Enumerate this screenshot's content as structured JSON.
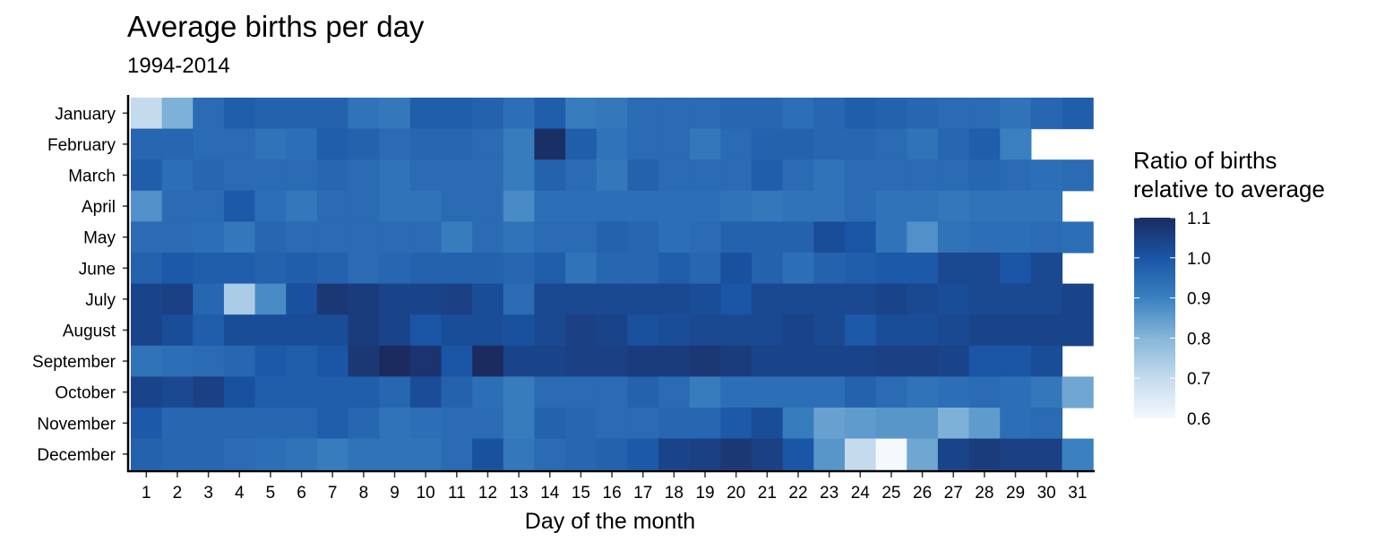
{
  "chart_data": {
    "type": "heatmap",
    "title": "Average births per day",
    "subtitle": "1994-2014",
    "xlabel": "Day of the month",
    "ylabel": "",
    "x": [
      1,
      2,
      3,
      4,
      5,
      6,
      7,
      8,
      9,
      10,
      11,
      12,
      13,
      14,
      15,
      16,
      17,
      18,
      19,
      20,
      21,
      22,
      23,
      24,
      25,
      26,
      27,
      28,
      29,
      30,
      31
    ],
    "y": [
      "January",
      "February",
      "March",
      "April",
      "May",
      "June",
      "July",
      "August",
      "September",
      "October",
      "November",
      "December"
    ],
    "values": [
      [
        0.7,
        0.81,
        0.95,
        0.98,
        0.97,
        0.97,
        0.97,
        0.93,
        0.92,
        0.98,
        0.98,
        0.97,
        0.94,
        0.98,
        0.91,
        0.92,
        0.95,
        0.95,
        0.95,
        0.96,
        0.96,
        0.94,
        0.96,
        0.98,
        0.97,
        0.96,
        0.95,
        0.95,
        0.93,
        0.96,
        0.98
      ],
      [
        0.96,
        0.96,
        0.95,
        0.95,
        0.93,
        0.94,
        0.98,
        0.97,
        0.95,
        0.96,
        0.96,
        0.95,
        0.91,
        1.09,
        0.98,
        0.93,
        0.95,
        0.95,
        0.92,
        0.95,
        0.97,
        0.97,
        0.96,
        0.96,
        0.95,
        0.93,
        0.96,
        0.98,
        0.9,
        null,
        null
      ],
      [
        0.98,
        0.94,
        0.96,
        0.95,
        0.95,
        0.95,
        0.96,
        0.95,
        0.93,
        0.95,
        0.95,
        0.95,
        0.91,
        0.97,
        0.95,
        0.92,
        0.97,
        0.95,
        0.95,
        0.95,
        0.98,
        0.95,
        0.93,
        0.95,
        0.95,
        0.95,
        0.95,
        0.96,
        0.95,
        0.94,
        0.95
      ],
      [
        0.87,
        0.95,
        0.95,
        0.99,
        0.94,
        0.92,
        0.95,
        0.95,
        0.93,
        0.93,
        0.95,
        0.95,
        0.88,
        0.94,
        0.94,
        0.94,
        0.94,
        0.94,
        0.94,
        0.93,
        0.92,
        0.93,
        0.93,
        0.95,
        0.93,
        0.93,
        0.92,
        0.93,
        0.93,
        0.93,
        null
      ],
      [
        0.95,
        0.95,
        0.94,
        0.92,
        0.96,
        0.95,
        0.95,
        0.95,
        0.95,
        0.95,
        0.91,
        0.95,
        0.93,
        0.95,
        0.95,
        0.97,
        0.96,
        0.94,
        0.95,
        0.97,
        0.97,
        0.97,
        1.02,
        1.0,
        0.93,
        0.87,
        0.93,
        0.94,
        0.94,
        0.95,
        0.94
      ],
      [
        0.97,
        0.99,
        0.98,
        0.98,
        0.97,
        0.98,
        0.97,
        0.95,
        0.96,
        0.97,
        0.97,
        0.97,
        0.96,
        0.98,
        0.93,
        0.96,
        0.96,
        0.98,
        0.96,
        1.01,
        0.97,
        0.94,
        0.97,
        0.98,
        0.99,
        0.99,
        1.03,
        1.03,
        1.0,
        1.03,
        null
      ],
      [
        1.04,
        1.05,
        0.96,
        0.74,
        0.88,
        1.01,
        1.07,
        1.06,
        1.04,
        1.04,
        1.05,
        1.02,
        0.95,
        1.03,
        1.03,
        1.03,
        1.03,
        1.03,
        1.02,
        1.0,
        1.03,
        1.03,
        1.03,
        1.03,
        1.04,
        1.03,
        1.02,
        1.03,
        1.03,
        1.03,
        1.04
      ],
      [
        1.04,
        1.02,
        0.98,
        1.02,
        1.02,
        1.02,
        1.02,
        1.06,
        1.04,
        1.0,
        1.02,
        1.02,
        1.01,
        1.03,
        1.05,
        1.04,
        1.01,
        1.02,
        1.03,
        1.03,
        1.03,
        1.04,
        1.03,
        0.99,
        1.02,
        1.02,
        1.03,
        1.04,
        1.04,
        1.04,
        1.04
      ],
      [
        0.93,
        0.94,
        0.95,
        0.96,
        0.99,
        0.98,
        1.0,
        1.07,
        1.1,
        1.08,
        1.0,
        1.1,
        1.04,
        1.04,
        1.05,
        1.05,
        1.06,
        1.06,
        1.07,
        1.06,
        1.04,
        1.04,
        1.04,
        1.04,
        1.05,
        1.05,
        1.04,
        1.0,
        1.0,
        1.02,
        null
      ],
      [
        1.04,
        1.03,
        1.05,
        1.01,
        0.98,
        0.98,
        0.98,
        0.98,
        0.96,
        1.02,
        0.97,
        0.94,
        0.91,
        0.95,
        0.95,
        0.95,
        0.97,
        0.95,
        0.91,
        0.94,
        0.94,
        0.94,
        0.94,
        0.97,
        0.95,
        0.93,
        0.94,
        0.95,
        0.94,
        0.92,
        0.83
      ],
      [
        0.99,
        0.96,
        0.96,
        0.96,
        0.96,
        0.96,
        0.98,
        0.96,
        0.93,
        0.94,
        0.95,
        0.95,
        0.91,
        0.97,
        0.96,
        0.95,
        0.95,
        0.96,
        0.96,
        0.99,
        1.02,
        0.91,
        0.84,
        0.85,
        0.86,
        0.86,
        0.81,
        0.85,
        0.94,
        0.95,
        null
      ],
      [
        0.97,
        0.96,
        0.96,
        0.95,
        0.94,
        0.93,
        0.91,
        0.93,
        0.93,
        0.93,
        0.95,
        1.01,
        0.92,
        0.95,
        0.96,
        0.97,
        0.99,
        1.04,
        1.05,
        1.07,
        1.05,
        1.0,
        0.86,
        0.7,
        0.6,
        0.83,
        1.04,
        1.06,
        1.05,
        1.05,
        0.9
      ]
    ],
    "legend": {
      "title_lines": [
        "Ratio of births",
        "relative to average"
      ],
      "ticks": [
        "1.1",
        "1.0",
        "0.9",
        "0.8",
        "0.7",
        "0.6"
      ],
      "tick_values": [
        1.1,
        1.0,
        0.9,
        0.8,
        0.7,
        0.6
      ],
      "range": [
        0.6,
        1.1
      ],
      "colors": [
        "#f4f9fe",
        "#c4dbee",
        "#86b6d9",
        "#3a80c0",
        "#1a55a6",
        "#1b2b60"
      ],
      "placement": "right"
    },
    "grid": false
  }
}
